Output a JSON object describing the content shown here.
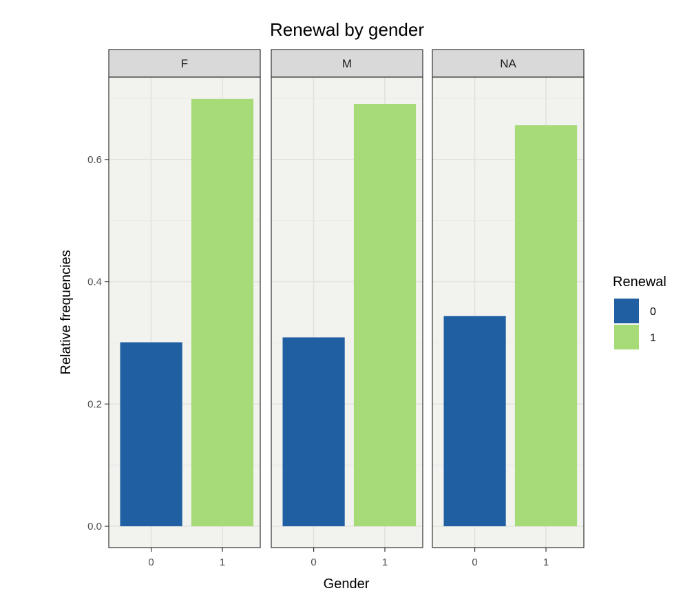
{
  "chart_data": {
    "type": "bar",
    "title": "Renewal by gender",
    "xlabel": "Gender",
    "ylabel": "Relative frequencies",
    "ylim": [
      0,
      0.7
    ],
    "y_ticks": [
      "0.0",
      "0.2",
      "0.4",
      "0.6"
    ],
    "grid": true,
    "facets": [
      "F",
      "M",
      "NA"
    ],
    "categories": [
      "0",
      "1"
    ],
    "series": [
      {
        "facet": "F",
        "values": [
          0.301,
          0.699
        ]
      },
      {
        "facet": "M",
        "values": [
          0.309,
          0.691
        ]
      },
      {
        "facet": "NA",
        "values": [
          0.344,
          0.656
        ]
      }
    ],
    "legend": {
      "title": "Renewal",
      "position": "right",
      "entries": [
        {
          "label": "0",
          "color": "#1f5fa2"
        },
        {
          "label": "1",
          "color": "#a6db78"
        }
      ]
    },
    "colors": {
      "panel_bg": "#f2f2ef",
      "strip_bg": "#d9d9d9",
      "grid_major": "#e1e1de",
      "grid_minor": "#e9e9e6",
      "border": "#333333"
    }
  }
}
